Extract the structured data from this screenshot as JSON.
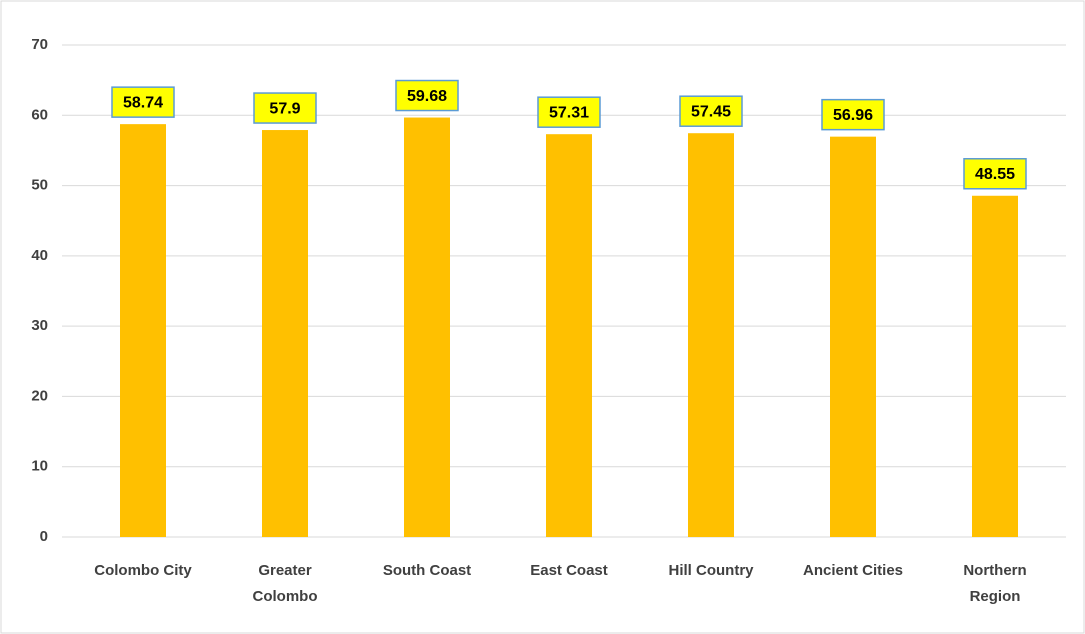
{
  "chart_data": {
    "type": "bar",
    "categories": [
      "Colombo City",
      "Greater Colombo",
      "South Coast",
      "East Coast",
      "Hill Country",
      "Ancient Cities",
      "Northern Region"
    ],
    "values": [
      58.74,
      57.9,
      59.68,
      57.31,
      57.45,
      56.96,
      48.55
    ],
    "color": "#ffc000",
    "label_color": "#ffff00",
    "ylim": [
      0,
      70
    ],
    "yticks": [
      0,
      10,
      20,
      30,
      40,
      50,
      60,
      70
    ],
    "grid": true
  }
}
